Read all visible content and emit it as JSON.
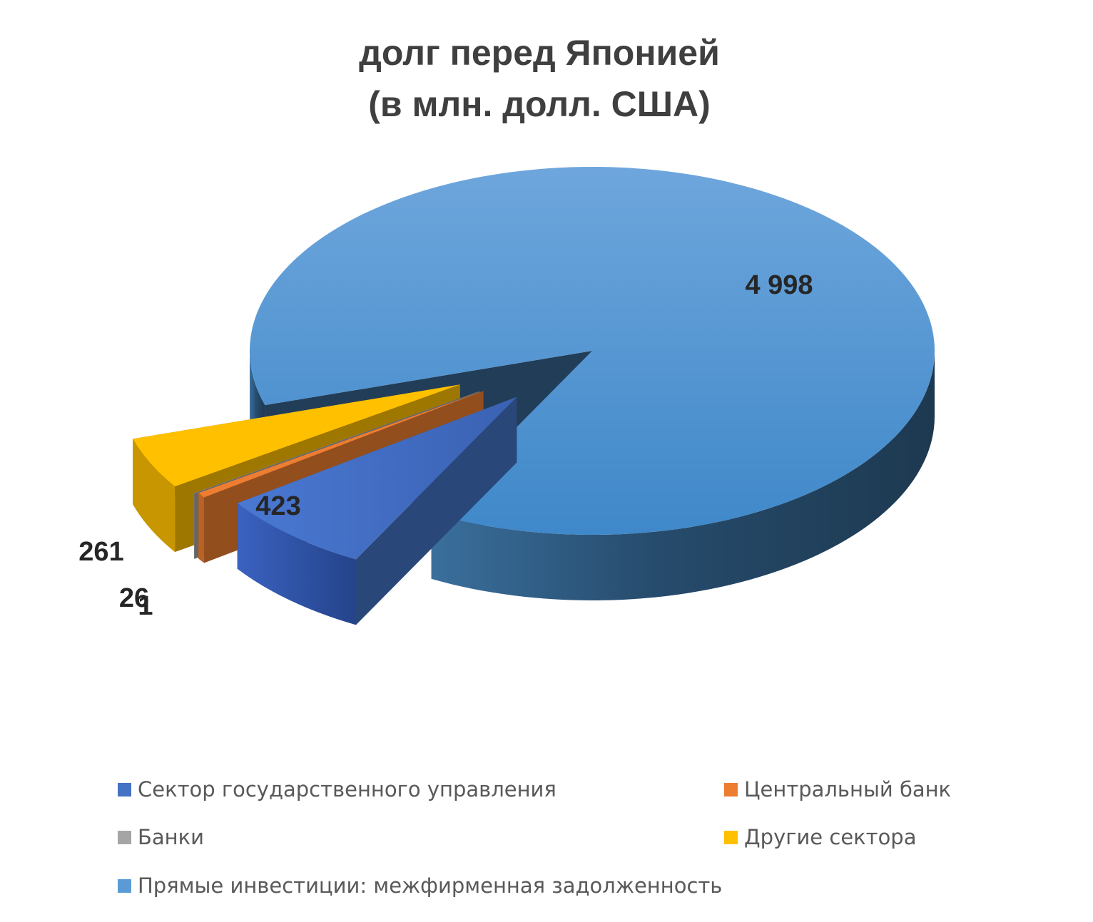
{
  "chart_data": {
    "type": "pie",
    "title": "долг перед Японией",
    "subtitle": "(в млн. долл. США)",
    "labels": [
      "Сектор государственного управления",
      "Центральный банк",
      "Банки",
      "Другие сектора",
      "Прямые инвестиции: межфирменная задолженность"
    ],
    "values": [
      423,
      26,
      1,
      261,
      4998
    ],
    "data_labels": [
      "423",
      "26",
      "1",
      "261",
      "4 998"
    ],
    "colors": [
      "#4472C4",
      "#ED7D31",
      "#A5A5A5",
      "#FFC000",
      "#5B9BD5"
    ],
    "legend_position": "bottom",
    "exploded": [
      true,
      true,
      true,
      true,
      false
    ]
  }
}
